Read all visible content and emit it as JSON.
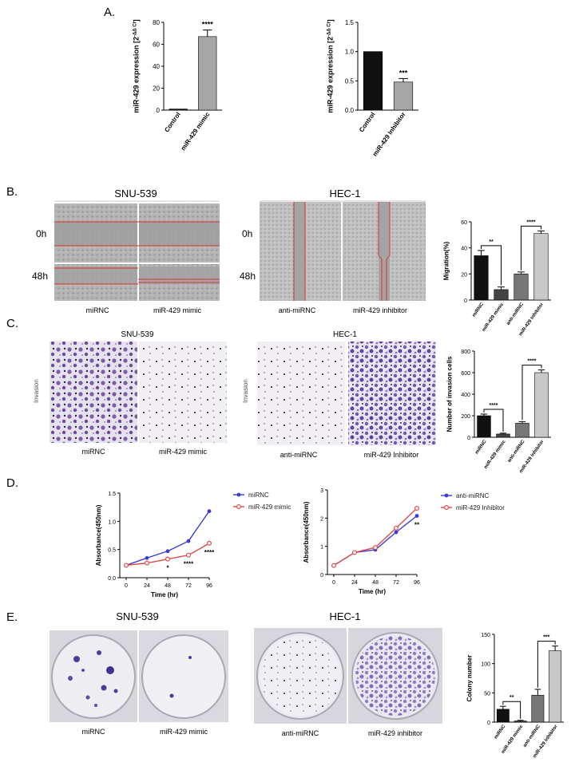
{
  "panels": {
    "A": "A.",
    "B": "B.",
    "C": "C.",
    "D": "D.",
    "E": "E."
  },
  "chart_data": [
    {
      "id": "a1",
      "type": "bar",
      "categories": [
        "Control",
        "miR-429 mimic"
      ],
      "values": [
        1,
        67
      ],
      "errors": [
        0,
        6
      ],
      "ylabel": "miR-429 expression [2",
      "ylabel_sup": "-ΔΔ Ct",
      "ylabel_close": "]",
      "ylim": [
        0,
        80
      ],
      "yticks": [
        "0",
        "20",
        "40",
        "60",
        "80"
      ],
      "sig": [
        "",
        "****"
      ],
      "colors": [
        "#1a1a1a",
        "#a6a6a6"
      ]
    },
    {
      "id": "a2",
      "type": "bar",
      "categories": [
        "Control",
        "miR-429 Inhibitor"
      ],
      "values": [
        1.0,
        0.48
      ],
      "errors": [
        0,
        0.06
      ],
      "ylabel": "miR-429 expression [2",
      "ylabel_sup": "-ΔΔ Ct",
      "ylabel_close": "]",
      "ylim": [
        0,
        1.5
      ],
      "yticks": [
        "0.0",
        "0.5",
        "1.0",
        "1.5"
      ],
      "sig": [
        "",
        "***"
      ],
      "colors": [
        "#111111",
        "#a6a6a6"
      ]
    },
    {
      "id": "b3",
      "type": "bar",
      "categories": [
        "miRNC",
        "miR-429 mimic",
        "anti-miRNC",
        "miR-429 Inhibitor"
      ],
      "values": [
        34,
        8,
        20,
        51
      ],
      "errors": [
        4,
        2,
        1.5,
        2
      ],
      "ylabel": "Migration(%)",
      "ylim": [
        0,
        60
      ],
      "yticks": [
        "0",
        "20",
        "40",
        "60"
      ],
      "brackets": [
        {
          "from": 0,
          "to": 1,
          "label": "**"
        },
        {
          "from": 2,
          "to": 3,
          "label": "****"
        }
      ],
      "colors": [
        "#111111",
        "#444444",
        "#777777",
        "#c8c8c8"
      ]
    },
    {
      "id": "c3",
      "type": "bar",
      "categories": [
        "miRNC",
        "miR-429 mimic",
        "anti-miRNC",
        "miR-429 Inhibitor"
      ],
      "values": [
        200,
        30,
        130,
        600
      ],
      "errors": [
        15,
        8,
        15,
        25
      ],
      "ylabel": "Number of invasion cells",
      "ylim": [
        0,
        800
      ],
      "yticks": [
        "0",
        "200",
        "400",
        "600",
        "800"
      ],
      "brackets": [
        {
          "from": 0,
          "to": 1,
          "label": "****"
        },
        {
          "from": 2,
          "to": 3,
          "label": "****"
        }
      ],
      "colors": [
        "#111111",
        "#444444",
        "#777777",
        "#c8c8c8"
      ]
    },
    {
      "id": "d1",
      "type": "line",
      "x": [
        0,
        24,
        48,
        72,
        96
      ],
      "series": [
        {
          "name": "miRNC",
          "values": [
            0.22,
            0.35,
            0.47,
            0.65,
            1.18
          ],
          "color": "#3b3bd6"
        },
        {
          "name": "miR-429 mimic",
          "values": [
            0.22,
            0.26,
            0.33,
            0.4,
            0.61
          ],
          "color": "#e04a4a"
        }
      ],
      "xlabel": "Time (hr)",
      "ylabel": "Absorbance(450nm)",
      "ylim": [
        0,
        1.5
      ],
      "yticks": [
        "0.0",
        "0.5",
        "1.0",
        "1.5"
      ],
      "xticks": [
        "0",
        "24",
        "48",
        "72",
        "96"
      ],
      "sig": [
        {
          "x": 48,
          "label": "*"
        },
        {
          "x": 72,
          "label": "****"
        },
        {
          "x": 96,
          "label": "****"
        }
      ]
    },
    {
      "id": "d2",
      "type": "line",
      "x": [
        0,
        24,
        48,
        72,
        96
      ],
      "series": [
        {
          "name": "anti-miRNC",
          "values": [
            0.32,
            0.78,
            0.88,
            1.5,
            2.08
          ],
          "color": "#3b3bd6"
        },
        {
          "name": "miR-429 Inhibitor",
          "values": [
            0.32,
            0.78,
            0.96,
            1.65,
            2.35
          ],
          "color": "#e04a4a"
        }
      ],
      "xlabel": "Time (hr)",
      "ylabel": "Absorbance(450nm)",
      "ylim": [
        0,
        3
      ],
      "yticks": [
        "0",
        "1",
        "2",
        "3"
      ],
      "xticks": [
        "0",
        "24",
        "48",
        "72",
        "96"
      ],
      "sig": [
        {
          "x": 96,
          "label": "**"
        }
      ]
    },
    {
      "id": "e3",
      "type": "bar",
      "categories": [
        "miRNC",
        "miR-429 mimic",
        "anti-miRNC",
        "miR-429 Inhibitor"
      ],
      "values": [
        22,
        2,
        46,
        122
      ],
      "errors": [
        5,
        1,
        10,
        8
      ],
      "ylabel": "Colony number",
      "ylim": [
        0,
        150
      ],
      "yticks": [
        "0",
        "50",
        "100",
        "150"
      ],
      "brackets": [
        {
          "from": 0,
          "to": 1,
          "label": "**"
        },
        {
          "from": 2,
          "to": 3,
          "label": "***"
        }
      ],
      "colors": [
        "#111111",
        "#444444",
        "#777777",
        "#c8c8c8"
      ]
    }
  ],
  "images": {
    "b": {
      "left_title": "SNU-539",
      "right_title": "HEC-1",
      "row_labels": [
        "0h",
        "48h"
      ],
      "right_row_labels": [
        "0h",
        "48h"
      ],
      "left_captions": [
        "miRNC",
        "miR-429 mimic"
      ],
      "right_captions": [
        "anti-miRNC",
        "miR-429 inhibitor"
      ]
    },
    "c": {
      "left_title": "SNU-539",
      "right_title": "HEC-1",
      "side_label": "Invasion",
      "left_captions": [
        "miRNC",
        "miR-429 mimic"
      ],
      "right_captions": [
        "anti-miRNC",
        "miR-429 Inhibitor"
      ]
    },
    "e": {
      "left_title": "SNU-539",
      "right_title": "HEC-1",
      "left_captions": [
        "miRNC",
        "miR-429 mimic"
      ],
      "right_captions": [
        "anti-miRNC",
        "miR-429 inhibitor"
      ]
    }
  }
}
